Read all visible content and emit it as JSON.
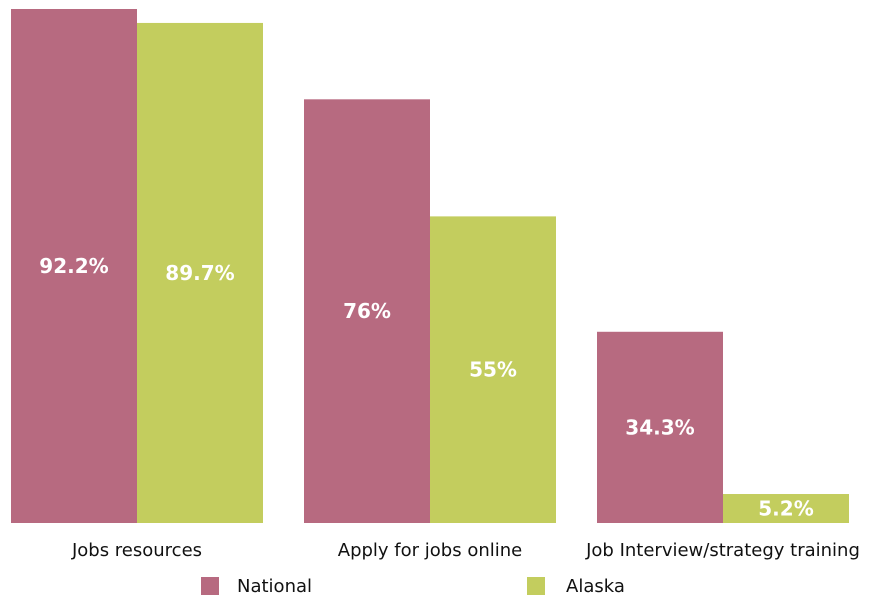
{
  "chart_data": {
    "type": "bar",
    "categories": [
      "Jobs resources",
      "Apply for jobs online",
      "Job Interview/strategy training"
    ],
    "series": [
      {
        "name": "National",
        "values": [
          92.2,
          76,
          34.3
        ],
        "labels": [
          "92.2%",
          "76%",
          "34.3%"
        ],
        "color": "#b76a80"
      },
      {
        "name": "Alaska",
        "values": [
          89.7,
          55,
          5.2
        ],
        "labels": [
          "89.7%",
          "55%",
          "5.2%"
        ],
        "color": "#c3cd5e"
      }
    ],
    "ylim": [
      0,
      92.2
    ],
    "grid": false,
    "legend_position": "bottom"
  }
}
